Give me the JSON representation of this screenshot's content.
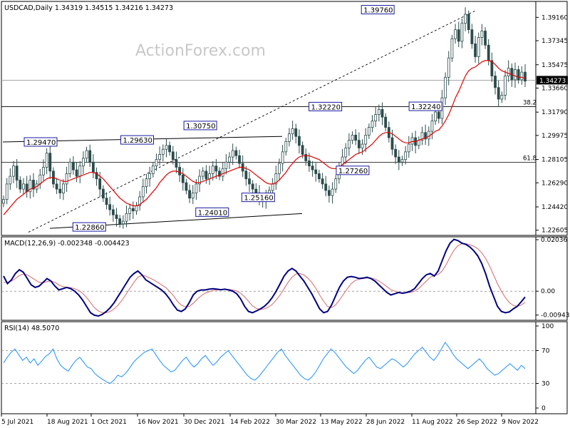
{
  "chart_data": [
    {
      "type": "candlestick",
      "panel": "price",
      "header": "USDCAD,Daily  1.34319 1.34515 1.34216 1.34273",
      "watermark": "ActionForex.com",
      "x_tick_labels": [
        "5 Jul 2021",
        "18 Aug 2021",
        "1 Oct 2021",
        "16 Nov 2021",
        "30 Dec 2021",
        "14 Feb 2022",
        "30 Mar 2022",
        "13 May 2022",
        "28 Jun 2022",
        "11 Aug 2022",
        "26 Sep 2022",
        "9 Nov 2022"
      ],
      "y_tick_labels": [
        "1.39160",
        "1.37345",
        "1.35475",
        "1.33660",
        "1.31790",
        "1.29975",
        "1.28105",
        "1.26290",
        "1.24420",
        "1.22605"
      ],
      "ylim": [
        1.222,
        1.404
      ],
      "current_price_label": "1.34273",
      "current_price": 1.34273,
      "price_labels": [
        {
          "text": "1.29470",
          "value": 1.2947
        },
        {
          "text": "1.29630",
          "value": 1.2963
        },
        {
          "text": "1.22860",
          "value": 1.2286
        },
        {
          "text": "1.30750",
          "value": 1.3075
        },
        {
          "text": "1.24010",
          "value": 1.2401
        },
        {
          "text": "1.25160",
          "value": 1.2516
        },
        {
          "text": "1.32220",
          "value": 1.3222
        },
        {
          "text": "1.27260",
          "value": 1.2726
        },
        {
          "text": "1.39760",
          "value": 1.3976
        },
        {
          "text": "1.32240",
          "value": 1.3224
        }
      ],
      "fib_levels": [
        {
          "label": "38.2",
          "value": 1.3222
        },
        {
          "label": "61.8",
          "value": 1.2788
        }
      ],
      "close_series": [
        1.25,
        1.262,
        1.268,
        1.276,
        1.265,
        1.258,
        1.262,
        1.256,
        1.265,
        1.258,
        1.262,
        1.269,
        1.275,
        1.286,
        1.272,
        1.262,
        1.258,
        1.255,
        1.262,
        1.27,
        1.279,
        1.273,
        1.268,
        1.276,
        1.282,
        1.288,
        1.279,
        1.271,
        1.266,
        1.258,
        1.251,
        1.246,
        1.242,
        1.238,
        1.235,
        1.231,
        1.233,
        1.239,
        1.243,
        1.241,
        1.245,
        1.252,
        1.26,
        1.266,
        1.27,
        1.276,
        1.281,
        1.285,
        1.289,
        1.292,
        1.287,
        1.281,
        1.275,
        1.269,
        1.263,
        1.257,
        1.251,
        1.255,
        1.262,
        1.268,
        1.272,
        1.266,
        1.27,
        1.276,
        1.272,
        1.268,
        1.274,
        1.279,
        1.283,
        1.288,
        1.284,
        1.278,
        1.272,
        1.266,
        1.262,
        1.258,
        1.255,
        1.25,
        1.249,
        1.252,
        1.257,
        1.262,
        1.27,
        1.278,
        1.287,
        1.295,
        1.301,
        1.305,
        1.299,
        1.292,
        1.285,
        1.28,
        1.276,
        1.273,
        1.27,
        1.266,
        1.262,
        1.257,
        1.253,
        1.258,
        1.266,
        1.274,
        1.283,
        1.29,
        1.296,
        1.3,
        1.296,
        1.29,
        1.293,
        1.3,
        1.306,
        1.311,
        1.316,
        1.32,
        1.314,
        1.306,
        1.298,
        1.289,
        1.283,
        1.279,
        1.281,
        1.287,
        1.293,
        1.298,
        1.292,
        1.296,
        1.302,
        1.297,
        1.303,
        1.311,
        1.318,
        1.313,
        1.329,
        1.345,
        1.36,
        1.375,
        1.382,
        1.373,
        1.387,
        1.394,
        1.382,
        1.371,
        1.361,
        1.376,
        1.381,
        1.37,
        1.358,
        1.346,
        1.337,
        1.328,
        1.331,
        1.346,
        1.352,
        1.343,
        1.351,
        1.343,
        1.349,
        1.342
      ],
      "ma_series": [
        1.238,
        1.241,
        1.244,
        1.247,
        1.25,
        1.252,
        1.254,
        1.256,
        1.258,
        1.259,
        1.26,
        1.262,
        1.264,
        1.266,
        1.267,
        1.267,
        1.266,
        1.265,
        1.264,
        1.264,
        1.265,
        1.266,
        1.267,
        1.268,
        1.269,
        1.27,
        1.271,
        1.271,
        1.27,
        1.268,
        1.266,
        1.263,
        1.26,
        1.257,
        1.254,
        1.251,
        1.249,
        1.247,
        1.246,
        1.245,
        1.245,
        1.246,
        1.248,
        1.25,
        1.253,
        1.256,
        1.259,
        1.263,
        1.266,
        1.269,
        1.271,
        1.272,
        1.272,
        1.271,
        1.27,
        1.268,
        1.266,
        1.264,
        1.263,
        1.263,
        1.264,
        1.265,
        1.266,
        1.267,
        1.268,
        1.269,
        1.27,
        1.271,
        1.272,
        1.273,
        1.274,
        1.275,
        1.275,
        1.274,
        1.273,
        1.271,
        1.269,
        1.267,
        1.265,
        1.263,
        1.262,
        1.262,
        1.263,
        1.265,
        1.268,
        1.271,
        1.275,
        1.278,
        1.281,
        1.283,
        1.284,
        1.284,
        1.284,
        1.283,
        1.282,
        1.281,
        1.279,
        1.277,
        1.275,
        1.274,
        1.274,
        1.275,
        1.277,
        1.279,
        1.281,
        1.283,
        1.285,
        1.286,
        1.287,
        1.289,
        1.291,
        1.293,
        1.296,
        1.299,
        1.301,
        1.302,
        1.302,
        1.301,
        1.299,
        1.297,
        1.295,
        1.294,
        1.294,
        1.295,
        1.295,
        1.296,
        1.297,
        1.298,
        1.299,
        1.301,
        1.303,
        1.304,
        1.307,
        1.311,
        1.316,
        1.322,
        1.329,
        1.334,
        1.34,
        1.346,
        1.35,
        1.352,
        1.353,
        1.355,
        1.357,
        1.358,
        1.358,
        1.357,
        1.355,
        1.352,
        1.35,
        1.349,
        1.348,
        1.347,
        1.346,
        1.345,
        1.345,
        1.344
      ]
    },
    {
      "type": "line",
      "panel": "macd",
      "header": "MACD(12,26,9) -0.002348 -0.004423",
      "y_tick_labels": [
        "0.02036",
        "0.00",
        "-0.009438"
      ],
      "ylim": [
        -0.0115,
        0.0215
      ],
      "series": [
        {
          "name": "MACD",
          "values": [
            0.006,
            0.003,
            0.0045,
            0.007,
            0.0085,
            0.0075,
            0.005,
            0.0025,
            0.0015,
            0.002,
            0.0035,
            0.005,
            0.004,
            0.002,
            0.0005,
            0.001,
            0.0015,
            0.001,
            0.0,
            -0.0015,
            -0.0035,
            -0.006,
            -0.0085,
            -0.0095,
            -0.0098,
            -0.0092,
            -0.008,
            -0.0065,
            -0.0045,
            -0.002,
            0.0005,
            0.003,
            0.0055,
            0.007,
            0.008,
            0.0065,
            0.0045,
            0.0035,
            0.0025,
            0.0015,
            0.0005,
            -0.001,
            -0.003,
            -0.0055,
            -0.0075,
            -0.008,
            -0.007,
            -0.0045,
            -0.0015,
            0.0,
            0.0005,
            0.0005,
            0.0008,
            0.001,
            0.0008,
            0.0006,
            0.0008,
            0.0005,
            0.0,
            -0.001,
            -0.003,
            -0.006,
            -0.008,
            -0.0085,
            -0.0078,
            -0.007,
            -0.006,
            -0.0045,
            -0.0025,
            0.0,
            0.003,
            0.006,
            0.008,
            0.009,
            0.008,
            0.006,
            0.004,
            0.0015,
            -0.001,
            -0.004,
            -0.007,
            -0.0085,
            -0.008,
            -0.0055,
            -0.002,
            0.0015,
            0.004,
            0.0055,
            0.0058,
            0.0055,
            0.005,
            0.0052,
            0.0055,
            0.005,
            0.004,
            0.0025,
            0.001,
            -0.0005,
            -0.0015,
            -0.001,
            -0.0005,
            -0.0008,
            -0.0005,
            0.0,
            0.001,
            0.003,
            0.005,
            0.0065,
            0.007,
            0.006,
            0.008,
            0.012,
            0.016,
            0.019,
            0.0205,
            0.02,
            0.019,
            0.0185,
            0.0175,
            0.016,
            0.014,
            0.011,
            0.007,
            0.002,
            -0.002,
            -0.006,
            -0.008,
            -0.0085,
            -0.0082,
            -0.007,
            -0.006,
            -0.0042,
            -0.0023
          ]
        },
        {
          "name": "Signal",
          "values": [
            0.0035,
            0.0035,
            0.004,
            0.005,
            0.0062,
            0.0068,
            0.0065,
            0.0055,
            0.0045,
            0.0035,
            0.0033,
            0.0038,
            0.004,
            0.0035,
            0.0025,
            0.0018,
            0.0016,
            0.0014,
            0.001,
            0.0003,
            -0.0008,
            -0.0025,
            -0.0045,
            -0.0065,
            -0.0078,
            -0.0085,
            -0.0085,
            -0.008,
            -0.007,
            -0.0055,
            -0.0035,
            -0.0012,
            0.0012,
            0.0035,
            0.0055,
            0.0062,
            0.006,
            0.0052,
            0.0045,
            0.0035,
            0.0025,
            0.0015,
            0.0,
            -0.0018,
            -0.004,
            -0.0055,
            -0.0062,
            -0.006,
            -0.0048,
            -0.0032,
            -0.0018,
            -0.0008,
            -0.0002,
            0.0003,
            0.0005,
            0.0006,
            0.0007,
            0.0007,
            0.0005,
            0.0001,
            -0.0008,
            -0.0022,
            -0.004,
            -0.0058,
            -0.0068,
            -0.0072,
            -0.007,
            -0.0063,
            -0.0052,
            -0.0035,
            -0.0015,
            0.001,
            0.0035,
            0.0055,
            0.0068,
            0.007,
            0.0064,
            0.0052,
            0.0035,
            0.0012,
            -0.0015,
            -0.004,
            -0.006,
            -0.0065,
            -0.0055,
            -0.0035,
            -0.0012,
            0.001,
            0.003,
            0.0042,
            0.0048,
            0.005,
            0.0052,
            0.0052,
            0.0048,
            0.004,
            0.003,
            0.0018,
            0.0006,
            0.0,
            -0.0004,
            -0.0006,
            -0.0006,
            -0.0005,
            0.0,
            0.001,
            0.0025,
            0.004,
            0.0055,
            0.0062,
            0.0066,
            0.008,
            0.0105,
            0.0135,
            0.0162,
            0.018,
            0.0188,
            0.0188,
            0.0184,
            0.0178,
            0.0168,
            0.0152,
            0.013,
            0.01,
            0.0065,
            0.003,
            0.0,
            -0.0025,
            -0.0045,
            -0.0056,
            -0.006,
            -0.0055,
            -0.0044
          ]
        }
      ]
    },
    {
      "type": "line",
      "panel": "rsi",
      "header": "RSI(14) 48.5070",
      "y_tick_labels": [
        "100",
        "70",
        "30",
        "0"
      ],
      "ylim": [
        0,
        100
      ],
      "levels": [
        70,
        30
      ],
      "series": [
        {
          "name": "RSI",
          "values": [
            55,
            62,
            68,
            72,
            65,
            58,
            62,
            55,
            60,
            52,
            57,
            63,
            66,
            72,
            60,
            52,
            48,
            45,
            52,
            58,
            62,
            56,
            50,
            48,
            42,
            38,
            35,
            32,
            30,
            34,
            40,
            38,
            42,
            48,
            55,
            60,
            64,
            68,
            70,
            72,
            65,
            58,
            52,
            48,
            44,
            46,
            52,
            58,
            62,
            55,
            50,
            54,
            60,
            64,
            58,
            52,
            56,
            62,
            66,
            70,
            64,
            58,
            52,
            46,
            40,
            36,
            34,
            38,
            44,
            50,
            56,
            62,
            68,
            72,
            64,
            58,
            52,
            46,
            40,
            36,
            34,
            38,
            44,
            52,
            60,
            66,
            72,
            68,
            62,
            56,
            50,
            46,
            42,
            46,
            52,
            58,
            62,
            56,
            50,
            48,
            52,
            56,
            60,
            58,
            54,
            50,
            54,
            60,
            66,
            70,
            74,
            68,
            62,
            58,
            64,
            72,
            80,
            74,
            66,
            60,
            56,
            52,
            48,
            52,
            56,
            60,
            55,
            48,
            44,
            40,
            42,
            46,
            50,
            54,
            50,
            46,
            52,
            48
          ]
        }
      ]
    }
  ]
}
